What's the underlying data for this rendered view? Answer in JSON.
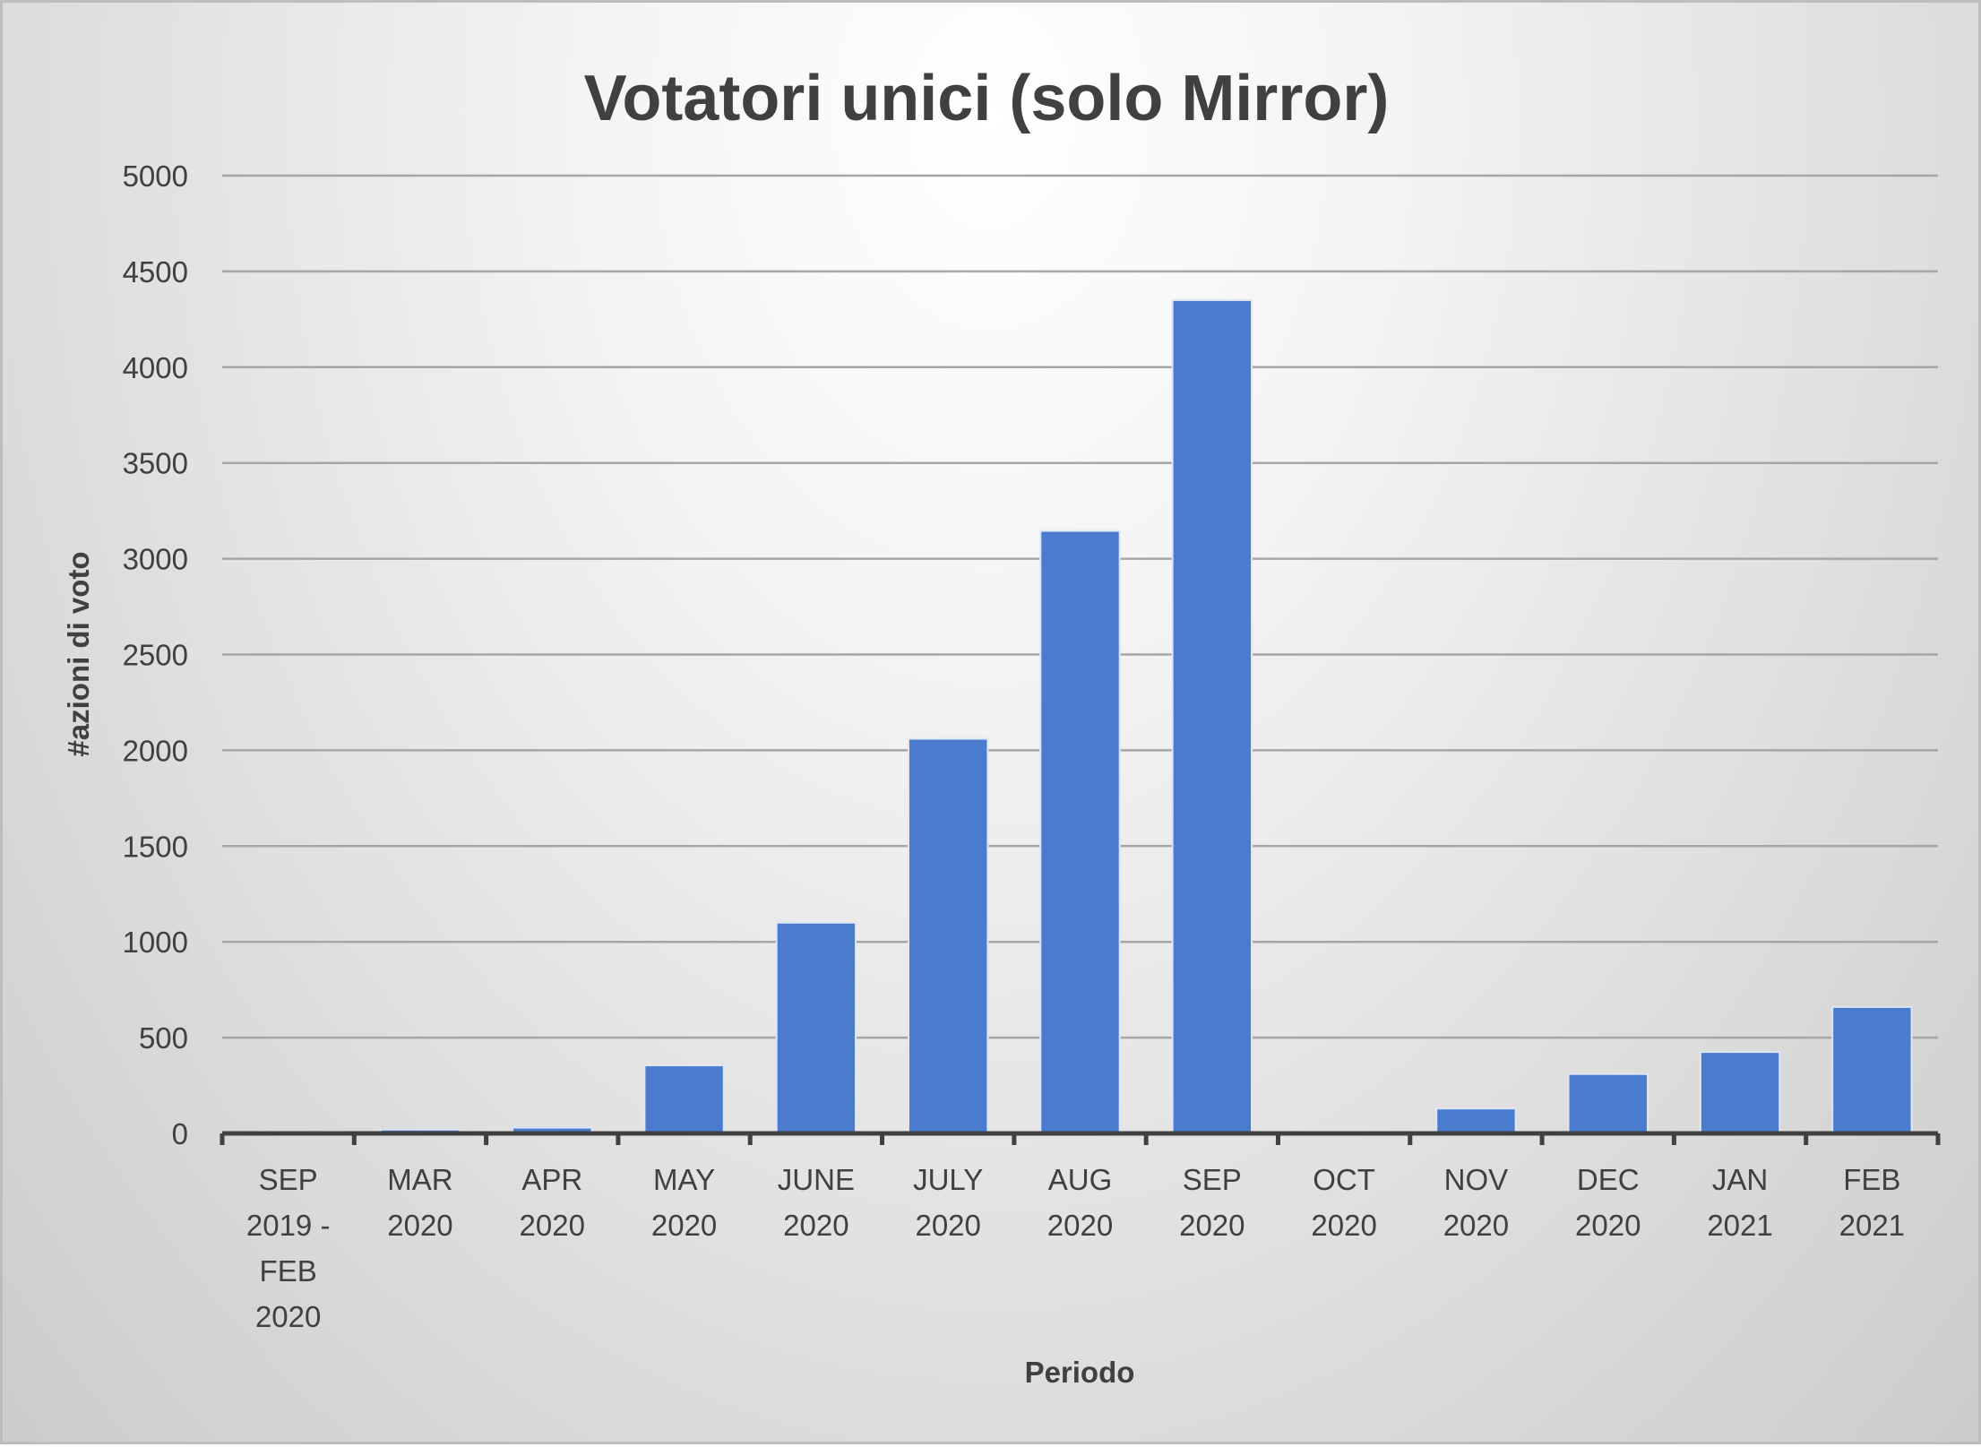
{
  "chart_data": {
    "type": "bar",
    "title": "Votatori unici (solo Mirror)",
    "xlabel": "Periodo",
    "ylabel": "#azioni di voto",
    "categories": [
      [
        "SEP",
        "2019 -",
        "FEB",
        "2020"
      ],
      [
        "MAR",
        "2020"
      ],
      [
        "APR",
        "2020"
      ],
      [
        "MAY",
        "2020"
      ],
      [
        "JUNE",
        "2020"
      ],
      [
        "JULY",
        "2020"
      ],
      [
        "AUG",
        "2020"
      ],
      [
        "SEP",
        "2020"
      ],
      [
        "OCT",
        "2020"
      ],
      [
        "NOV",
        "2020"
      ],
      [
        "DEC",
        "2020"
      ],
      [
        "JAN",
        "2021"
      ],
      [
        "FEB",
        "2021"
      ]
    ],
    "values": [
      0,
      20,
      30,
      355,
      1100,
      2060,
      3145,
      4350,
      0,
      130,
      310,
      425,
      660
    ],
    "ylim": [
      0,
      5000
    ],
    "yticks": [
      0,
      500,
      1000,
      1500,
      2000,
      2500,
      3000,
      3500,
      4000,
      4500,
      5000
    ],
    "grid": true,
    "legend": "none",
    "colors": {
      "bar": "#4a7bcf",
      "bar_edge": "#dfe6f3",
      "grid": "#a6a6a6",
      "axis": "#404040",
      "text": "#404040"
    }
  }
}
